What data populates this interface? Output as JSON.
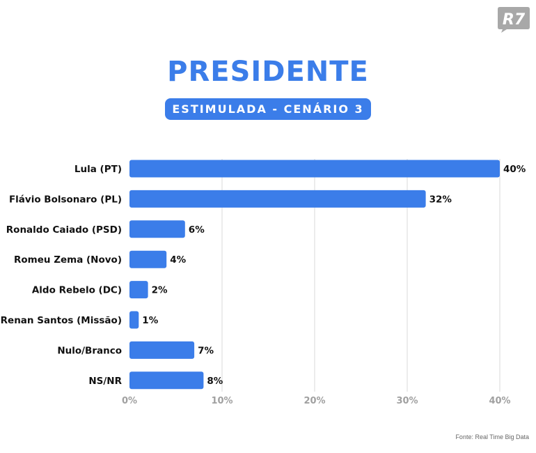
{
  "brand": {
    "logo_text": "R7",
    "logo_color": "#a8a8a8"
  },
  "header": {
    "title": "PRESIDENTE",
    "subtitle": "ESTIMULADA - CENÁRIO 3"
  },
  "colors": {
    "accent": "#3b7de9",
    "grid": "#d9d9d9",
    "tick": "#a0a0a0",
    "text": "#111111"
  },
  "source": "Fonte: Real Time Big Data",
  "chart_data": {
    "type": "bar",
    "orientation": "horizontal",
    "categories": [
      "Lula (PT)",
      "Flávio Bolsonaro (PL)",
      "Ronaldo Caiado (PSD)",
      "Romeu Zema (Novo)",
      "Aldo Rebelo (DC)",
      "Renan Santos (Missão)",
      "Nulo/Branco",
      "NS/NR"
    ],
    "values": [
      40,
      32,
      6,
      4,
      2,
      1,
      7,
      8
    ],
    "value_labels": [
      "40%",
      "32%",
      "6%",
      "4%",
      "2%",
      "1%",
      "7%",
      "8%"
    ],
    "xticks": [
      0,
      10,
      20,
      30,
      40
    ],
    "xtick_labels": [
      "0%",
      "10%",
      "20%",
      "30%",
      "40%"
    ],
    "xlim": [
      0,
      40
    ],
    "grid": true,
    "legend": "none"
  }
}
